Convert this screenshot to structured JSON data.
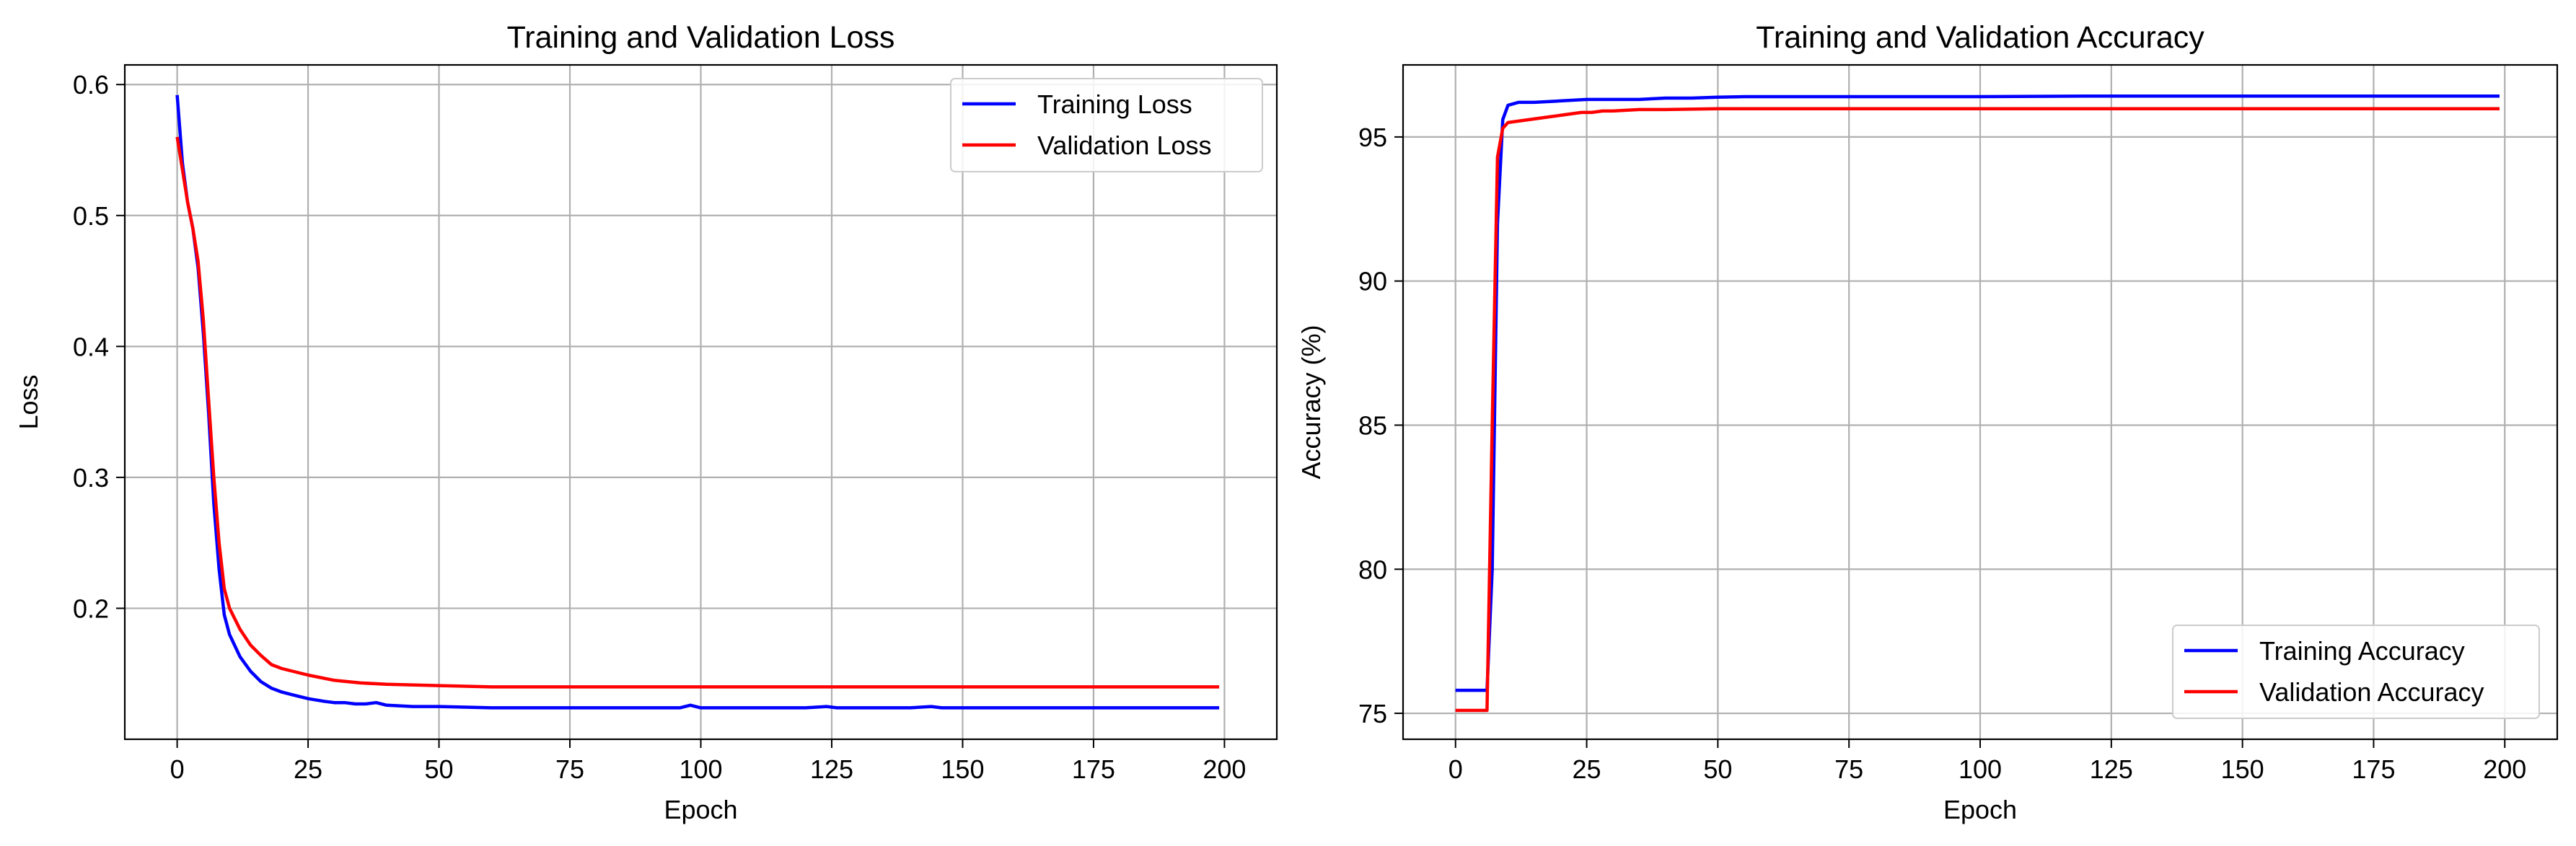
{
  "chart_data": [
    {
      "type": "line",
      "title": "Training and Validation Loss",
      "xlabel": "Epoch",
      "ylabel": "Loss",
      "xlim": [
        -10,
        210
      ],
      "ylim": [
        0.1,
        0.615
      ],
      "xticks": [
        0,
        25,
        50,
        75,
        100,
        125,
        150,
        175,
        200
      ],
      "yticks": [
        0.2,
        0.3,
        0.4,
        0.5,
        0.6
      ],
      "grid": true,
      "legend_position": "upper right",
      "series": [
        {
          "name": "Training Loss",
          "color": "#0000ff",
          "x": [
            0,
            1,
            2,
            3,
            4,
            5,
            6,
            7,
            8,
            9,
            10,
            12,
            14,
            16,
            18,
            20,
            22,
            25,
            28,
            30,
            32,
            34,
            36,
            38,
            40,
            45,
            50,
            60,
            70,
            80,
            90,
            96,
            98,
            100,
            110,
            120,
            124,
            126,
            130,
            140,
            144,
            146,
            150,
            160,
            170,
            180,
            190,
            199
          ],
          "y": [
            0.592,
            0.54,
            0.51,
            0.49,
            0.46,
            0.41,
            0.35,
            0.28,
            0.23,
            0.195,
            0.18,
            0.163,
            0.152,
            0.144,
            0.139,
            0.136,
            0.134,
            0.131,
            0.129,
            0.128,
            0.128,
            0.127,
            0.127,
            0.128,
            0.126,
            0.125,
            0.125,
            0.124,
            0.124,
            0.124,
            0.124,
            0.124,
            0.126,
            0.124,
            0.124,
            0.124,
            0.125,
            0.124,
            0.124,
            0.124,
            0.125,
            0.124,
            0.124,
            0.124,
            0.124,
            0.124,
            0.124,
            0.124
          ]
        },
        {
          "name": "Validation Loss",
          "color": "#ff0000",
          "x": [
            0,
            1,
            2,
            3,
            4,
            5,
            6,
            7,
            8,
            9,
            10,
            12,
            14,
            16,
            18,
            20,
            25,
            30,
            35,
            40,
            50,
            60,
            75,
            100,
            125,
            150,
            175,
            199
          ],
          "y": [
            0.56,
            0.535,
            0.51,
            0.49,
            0.465,
            0.42,
            0.36,
            0.3,
            0.25,
            0.215,
            0.2,
            0.184,
            0.172,
            0.164,
            0.157,
            0.154,
            0.149,
            0.145,
            0.143,
            0.142,
            0.141,
            0.14,
            0.14,
            0.14,
            0.14,
            0.14,
            0.14,
            0.14
          ]
        }
      ]
    },
    {
      "type": "line",
      "title": "Training and Validation Accuracy",
      "xlabel": "Epoch",
      "ylabel": "Accuracy (%)",
      "xlim": [
        -10,
        210
      ],
      "ylim": [
        74.1,
        97.5
      ],
      "xticks": [
        0,
        25,
        50,
        75,
        100,
        125,
        150,
        175,
        200
      ],
      "yticks": [
        75,
        80,
        85,
        90,
        95
      ],
      "grid": true,
      "legend_position": "lower right",
      "series": [
        {
          "name": "Training Accuracy",
          "color": "#0000ff",
          "x": [
            0,
            5,
            6,
            7,
            8,
            9,
            10,
            11,
            12,
            15,
            20,
            25,
            30,
            35,
            40,
            45,
            50,
            55,
            60,
            80,
            100,
            120,
            150,
            175,
            199
          ],
          "y": [
            75.8,
            75.8,
            75.8,
            80,
            92,
            95.6,
            96.1,
            96.15,
            96.2,
            96.2,
            96.25,
            96.3,
            96.3,
            96.3,
            96.35,
            96.35,
            96.38,
            96.4,
            96.4,
            96.4,
            96.4,
            96.42,
            96.42,
            96.42,
            96.42
          ]
        },
        {
          "name": "Validation Accuracy",
          "color": "#ff0000",
          "x": [
            0,
            5,
            6,
            7,
            8,
            9,
            10,
            12,
            14,
            16,
            18,
            20,
            22,
            24,
            26,
            28,
            30,
            35,
            40,
            50,
            60,
            80,
            100,
            150,
            199
          ],
          "y": [
            75.1,
            75.1,
            75.1,
            85,
            94.3,
            95.3,
            95.5,
            95.55,
            95.6,
            95.65,
            95.7,
            95.75,
            95.8,
            95.85,
            95.85,
            95.9,
            95.9,
            95.95,
            95.95,
            95.98,
            95.98,
            95.98,
            95.98,
            95.98,
            95.98
          ]
        }
      ]
    }
  ]
}
